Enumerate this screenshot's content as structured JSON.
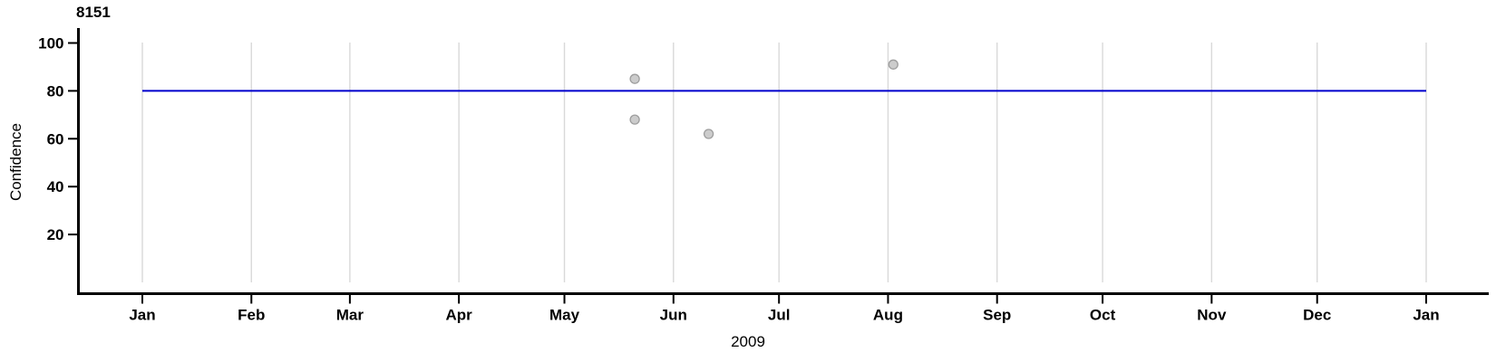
{
  "chart": {
    "title": "8151",
    "ylabel": "Confidence",
    "xlabel": "2009"
  },
  "chart_data": {
    "type": "scatter",
    "title": "8151",
    "xlabel": "2009",
    "ylabel": "Confidence",
    "x_axis": {
      "scale": "date",
      "year": "2009",
      "tick_labels": [
        "Jan",
        "Feb",
        "Mar",
        "Apr",
        "May",
        "Jun",
        "Jul",
        "Aug",
        "Sep",
        "Oct",
        "Nov",
        "Dec",
        "Jan"
      ],
      "tick_days": [
        0,
        31,
        59,
        90,
        120,
        151,
        181,
        212,
        243,
        273,
        304,
        334,
        365
      ],
      "range_days": [
        0,
        365
      ]
    },
    "y_axis": {
      "tick_labels": [
        "20",
        "40",
        "60",
        "80",
        "100"
      ],
      "tick_values": [
        20,
        40,
        60,
        80,
        100
      ],
      "range": [
        0,
        105
      ],
      "grid": false
    },
    "grid": {
      "vertical_at_month_starts": true,
      "color": "#d9d9d9"
    },
    "reference_line": {
      "y": 80,
      "color": "#0000CD"
    },
    "points": [
      {
        "date": "2009-05-21",
        "day": 140,
        "value": 85
      },
      {
        "date": "2009-05-21",
        "day": 140,
        "value": 68
      },
      {
        "date": "2009-06-11",
        "day": 161,
        "value": 62
      },
      {
        "date": "2009-08-02",
        "day": 213.5,
        "value": 91
      }
    ],
    "point_style": {
      "fill": "#cccccc",
      "stroke": "#9e9e9e",
      "radius": 5
    },
    "axis_color": "#000000",
    "legend": "none"
  }
}
